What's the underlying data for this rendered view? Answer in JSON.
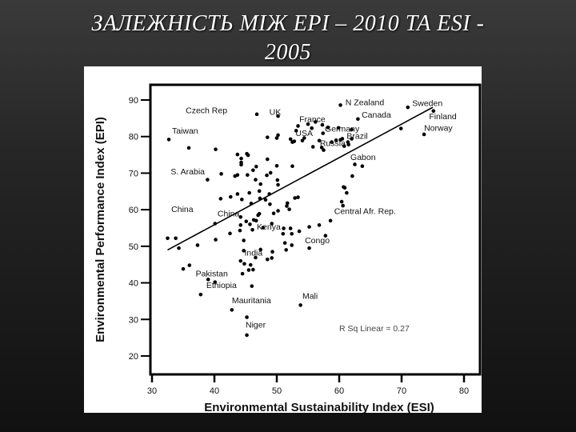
{
  "slide": {
    "title_line1": "ЗАЛЕЖНІСТЬ МІЖ EPI – 2010 ТА ESI -",
    "title_line2": "2005"
  },
  "chart_data": {
    "type": "scatter",
    "title": "ЗАЛЕЖНІСТЬ МІЖ EPI – 2010 ТА ESI - 2005",
    "xlabel": "Environmental Sustainability Index (ESI)",
    "ylabel": "Environmental Performance Index (EPI)",
    "xlim": [
      27,
      81
    ],
    "ylim": [
      18,
      92
    ],
    "xticks": [
      30,
      40,
      50,
      60,
      70,
      80
    ],
    "yticks": [
      20,
      30,
      40,
      50,
      60,
      70,
      80,
      90
    ],
    "grid": false,
    "annotation": "R Sq Linear = 0.27",
    "fit_line": {
      "x": [
        32.5,
        75
      ],
      "y": [
        49,
        88
      ]
    },
    "labels": [
      {
        "text": "Czech Rep",
        "x": 35.4,
        "y": 86.4
      },
      {
        "text": "UK",
        "x": 48.8,
        "y": 85.9
      },
      {
        "text": "N Zealand",
        "x": 61.0,
        "y": 88.6
      },
      {
        "text": "Sweden",
        "x": 71.7,
        "y": 88.4
      },
      {
        "text": "France",
        "x": 53.6,
        "y": 84.0
      },
      {
        "text": "Canada",
        "x": 63.6,
        "y": 85.2
      },
      {
        "text": "Finland",
        "x": 74.4,
        "y": 84.8
      },
      {
        "text": "Germany",
        "x": 57.7,
        "y": 81.4
      },
      {
        "text": "USA",
        "x": 53.0,
        "y": 80.2
      },
      {
        "text": "Brazil",
        "x": 61.2,
        "y": 79.4
      },
      {
        "text": "Norway",
        "x": 73.6,
        "y": 81.6
      },
      {
        "text": "Russia",
        "x": 56.9,
        "y": 77.4
      },
      {
        "text": "Taiwan",
        "x": 33.2,
        "y": 80.8
      },
      {
        "text": "Gabon",
        "x": 61.8,
        "y": 73.6
      },
      {
        "text": "S. Arabia",
        "x": 33.0,
        "y": 69.6
      },
      {
        "text": "China",
        "x": 33.1,
        "y": 59.4
      },
      {
        "text": "China",
        "x": 40.5,
        "y": 58.2
      },
      {
        "text": "Central Afr. Rep.",
        "x": 59.2,
        "y": 58.8
      },
      {
        "text": "Kenya",
        "x": 46.8,
        "y": 54.6
      },
      {
        "text": "Congo",
        "x": 54.5,
        "y": 50.8
      },
      {
        "text": "India",
        "x": 44.8,
        "y": 47.4
      },
      {
        "text": "Pakistan",
        "x": 37.0,
        "y": 41.8
      },
      {
        "text": "Ethiopia",
        "x": 38.7,
        "y": 38.6
      },
      {
        "text": "Mali",
        "x": 54.1,
        "y": 35.6
      },
      {
        "text": "Mauritania",
        "x": 42.8,
        "y": 34.4
      },
      {
        "text": "Niger",
        "x": 45.0,
        "y": 27.8
      }
    ],
    "points": [
      [
        46.8,
        86.1
      ],
      [
        50.2,
        85.6
      ],
      [
        60.2,
        88.6
      ],
      [
        71.0,
        88.0
      ],
      [
        75.1,
        87.0
      ],
      [
        56.2,
        84.0
      ],
      [
        63.0,
        84.8
      ],
      [
        55.0,
        83.4
      ],
      [
        57.3,
        83.2
      ],
      [
        58.2,
        82.5
      ],
      [
        59.9,
        82.4
      ],
      [
        62.0,
        81.9
      ],
      [
        69.9,
        82.2
      ],
      [
        53.4,
        82.9
      ],
      [
        55.6,
        82.3
      ],
      [
        53.1,
        81.6
      ],
      [
        57.4,
        80.9
      ],
      [
        50.2,
        80.4
      ],
      [
        50.0,
        79.6
      ],
      [
        48.5,
        79.8
      ],
      [
        54.4,
        79.6
      ],
      [
        54.1,
        78.9
      ],
      [
        52.5,
        78.5
      ],
      [
        52.8,
        78.7
      ],
      [
        52.2,
        79.3
      ],
      [
        56.8,
        78.9
      ],
      [
        58.8,
        78.5
      ],
      [
        59.5,
        79.0
      ],
      [
        60.2,
        79.1
      ],
      [
        60.5,
        79.4
      ],
      [
        61.4,
        78.5
      ],
      [
        62.0,
        79.4
      ],
      [
        61.5,
        77.8
      ],
      [
        60.8,
        77.4
      ],
      [
        55.8,
        77.2
      ],
      [
        57.2,
        77.0
      ],
      [
        57.5,
        76.3
      ],
      [
        73.6,
        80.6
      ],
      [
        32.7,
        79.2
      ],
      [
        35.9,
        76.9
      ],
      [
        40.2,
        76.5
      ],
      [
        43.7,
        75.1
      ],
      [
        45.2,
        75.3
      ],
      [
        44.3,
        74.0
      ],
      [
        45.4,
        74.9
      ],
      [
        44.3,
        72.3
      ],
      [
        44.3,
        72.9
      ],
      [
        46.7,
        71.8
      ],
      [
        48.5,
        73.8
      ],
      [
        50.0,
        72.0
      ],
      [
        52.5,
        71.9
      ],
      [
        46.2,
        70.8
      ],
      [
        49.0,
        70.1
      ],
      [
        50.1,
        68.1
      ],
      [
        50.2,
        66.8
      ],
      [
        38.9,
        68.2
      ],
      [
        41.1,
        69.8
      ],
      [
        43.3,
        69.2
      ],
      [
        43.7,
        69.5
      ],
      [
        45.3,
        69.5
      ],
      [
        46.6,
        68.2
      ],
      [
        48.4,
        69.4
      ],
      [
        47.4,
        67.0
      ],
      [
        47.2,
        65.1
      ],
      [
        45.6,
        64.6
      ],
      [
        48.8,
        64.3
      ],
      [
        47.3,
        63.1
      ],
      [
        44.4,
        62.8
      ],
      [
        45.9,
        61.7
      ],
      [
        41.0,
        63.0
      ],
      [
        42.6,
        63.5
      ],
      [
        43.7,
        64.3
      ],
      [
        48.2,
        62.7
      ],
      [
        52.9,
        63.2
      ],
      [
        53.4,
        63.4
      ],
      [
        48.9,
        61.5
      ],
      [
        51.7,
        61.8
      ],
      [
        51.6,
        61.0
      ],
      [
        52.0,
        60.1
      ],
      [
        50.2,
        59.7
      ],
      [
        49.5,
        59.0
      ],
      [
        47.2,
        58.9
      ],
      [
        47.0,
        58.5
      ],
      [
        44.2,
        58.0
      ],
      [
        46.3,
        57.2
      ],
      [
        46.7,
        57.0
      ],
      [
        49.2,
        56.2
      ],
      [
        45.7,
        56.0
      ],
      [
        45.1,
        56.8
      ],
      [
        40.1,
        56.2
      ],
      [
        44.2,
        55.8
      ],
      [
        44.1,
        54.3
      ],
      [
        46.1,
        54.5
      ],
      [
        47.8,
        55.1
      ],
      [
        51.1,
        54.9
      ],
      [
        51.0,
        53.4
      ],
      [
        52.4,
        53.4
      ],
      [
        52.2,
        54.9
      ],
      [
        53.6,
        54.1
      ],
      [
        51.3,
        50.9
      ],
      [
        52.4,
        50.3
      ],
      [
        55.2,
        55.3
      ],
      [
        56.8,
        55.8
      ],
      [
        58.6,
        57.0
      ],
      [
        60.6,
        61.1
      ],
      [
        60.4,
        62.2
      ],
      [
        61.2,
        64.6
      ],
      [
        60.9,
        66.0
      ],
      [
        60.7,
        66.2
      ],
      [
        62.1,
        69.2
      ],
      [
        62.5,
        72.4
      ],
      [
        63.7,
        71.9
      ],
      [
        32.5,
        52.2
      ],
      [
        33.8,
        52.2
      ],
      [
        34.3,
        49.5
      ],
      [
        37.3,
        50.3
      ],
      [
        40.2,
        51.8
      ],
      [
        42.5,
        53.5
      ],
      [
        44.7,
        51.6
      ],
      [
        44.7,
        48.8
      ],
      [
        47.4,
        49.1
      ],
      [
        48.5,
        46.4
      ],
      [
        46.6,
        46.9
      ],
      [
        49.2,
        46.8
      ],
      [
        49.3,
        48.5
      ],
      [
        51.5,
        49.0
      ],
      [
        44.2,
        46.0
      ],
      [
        44.8,
        45.2
      ],
      [
        45.8,
        44.9
      ],
      [
        45.5,
        43.5
      ],
      [
        44.5,
        42.5
      ],
      [
        46.2,
        43.6
      ],
      [
        35.0,
        43.8
      ],
      [
        36.0,
        44.8
      ],
      [
        39.0,
        40.9
      ],
      [
        40.1,
        40.2
      ],
      [
        37.8,
        36.8
      ],
      [
        46.0,
        39.1
      ],
      [
        42.8,
        32.6
      ],
      [
        53.8,
        33.9
      ],
      [
        45.2,
        30.6
      ],
      [
        45.2,
        25.7
      ],
      [
        55.2,
        49.5
      ],
      [
        57.8,
        52.9
      ]
    ]
  }
}
